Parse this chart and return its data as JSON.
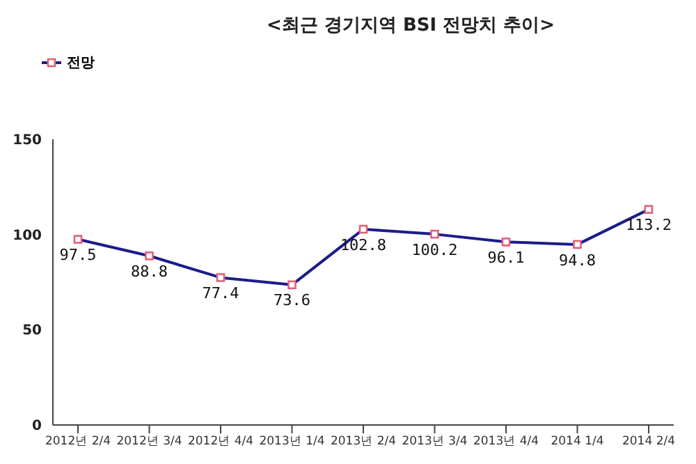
{
  "chart_data": {
    "type": "line",
    "title": "<최근 경기지역  BSI 전망치 추이>",
    "categories": [
      "2012년  2/4",
      "2012년  3/4",
      "2012년  4/4",
      "2013년  1/4",
      "2013년  2/4",
      "2013년  3/4",
      "2013년  4/4",
      "2014  1/4",
      "2014  2/4"
    ],
    "series": [
      {
        "name": "전망",
        "color": "#1c1c8a",
        "values": [
          97.5,
          88.8,
          77.4,
          73.6,
          102.8,
          100.2,
          96.1,
          94.8,
          113.2
        ]
      }
    ],
    "ylim": [
      0,
      150
    ],
    "yticks": [
      0,
      50,
      100,
      150
    ],
    "grid": false,
    "legend": "top left",
    "marker": "square",
    "line_style": "solid",
    "data_labels": true
  }
}
